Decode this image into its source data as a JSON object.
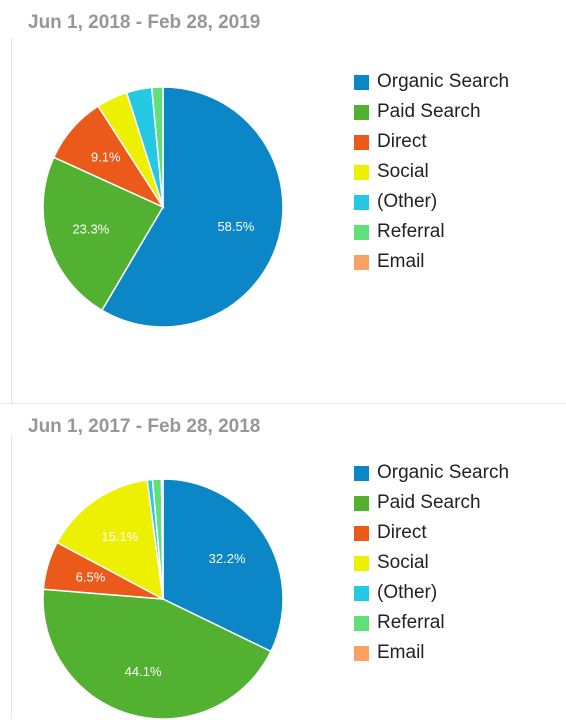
{
  "chart_data": [
    {
      "type": "pie",
      "title": "Jun 1, 2018 - Feb 28, 2019",
      "legend_position": "right",
      "slices": [
        {
          "name": "Organic Search",
          "value": 58.5,
          "label": "58.5%",
          "color": "#0b86c6"
        },
        {
          "name": "Paid Search",
          "value": 23.3,
          "label": "23.3%",
          "color": "#52b130"
        },
        {
          "name": "Direct",
          "value": 9.1,
          "label": "9.1%",
          "color": "#ec5a1b"
        },
        {
          "name": "Social",
          "value": 4.2,
          "label": "",
          "color": "#edf000"
        },
        {
          "name": "(Other)",
          "value": 3.4,
          "label": "",
          "color": "#24c8e3"
        },
        {
          "name": "Referral",
          "value": 1.5,
          "label": "",
          "color": "#61e07a"
        },
        {
          "name": "Email",
          "value": 0.0,
          "label": "",
          "color": "#f9a063"
        }
      ]
    },
    {
      "type": "pie",
      "title": "Jun 1, 2017 - Feb 28, 2018",
      "legend_position": "right",
      "slices": [
        {
          "name": "Organic Search",
          "value": 32.2,
          "label": "32.2%",
          "color": "#0b86c6"
        },
        {
          "name": "Paid Search",
          "value": 44.1,
          "label": "44.1%",
          "color": "#52b130"
        },
        {
          "name": "Direct",
          "value": 6.5,
          "label": "6.5%",
          "color": "#ec5a1b"
        },
        {
          "name": "Social",
          "value": 15.1,
          "label": "15.1%",
          "color": "#edf000"
        },
        {
          "name": "(Other)",
          "value": 0.7,
          "label": "",
          "color": "#24c8e3"
        },
        {
          "name": "Referral",
          "value": 1.2,
          "label": "",
          "color": "#61e07a"
        },
        {
          "name": "Email",
          "value": 0.2,
          "label": "",
          "color": "#f9a063"
        }
      ]
    }
  ]
}
